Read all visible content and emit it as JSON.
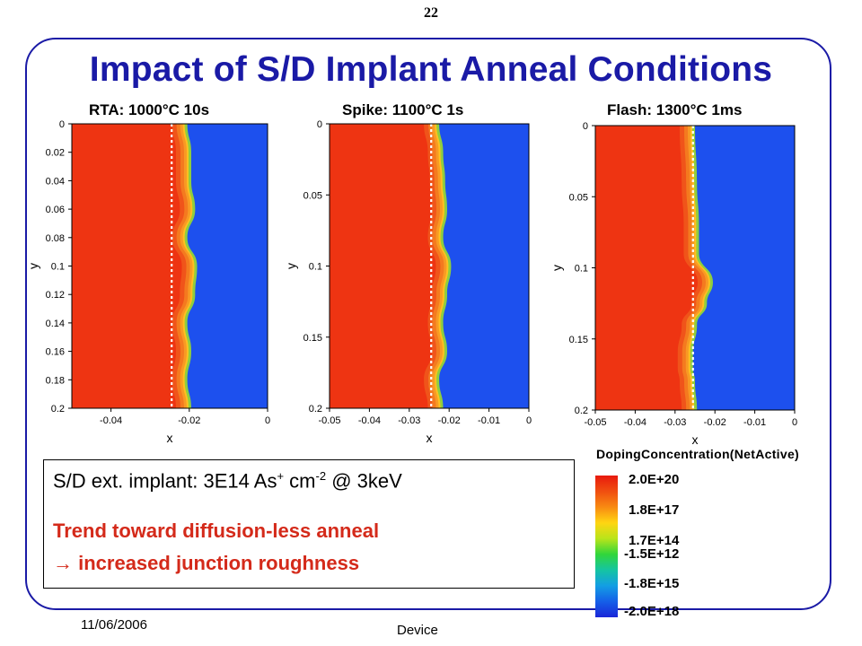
{
  "page_number": "22",
  "title": "Impact of S/D Implant Anneal Conditions",
  "footer": {
    "date": "11/06/2006",
    "label": "Device"
  },
  "info": {
    "implant_prefix": "S/D ext. implant: 3E14 As",
    "implant_sup1": "+",
    "implant_mid": " cm",
    "implant_sup2": "-2",
    "implant_suffix": " @ 3keV",
    "trend_line1": "Trend toward diffusion-less anneal",
    "trend_arrow": "→",
    "trend_line2": " increased junction roughness"
  },
  "colors": {
    "title_blue": "#1a1aa6",
    "trend_red": "#d42a1a",
    "n_region": "#ee3412",
    "p_region": "#1d50ee"
  },
  "chart_data": [
    {
      "type": "heatmap",
      "title": "RTA: 1000°C 10s",
      "xlabel": "x",
      "ylabel": "y",
      "xlim": [
        -0.05,
        0
      ],
      "ylim": [
        0,
        0.2
      ],
      "y_inverted": true,
      "xticks": [
        -0.04,
        -0.02,
        0
      ],
      "xtick_labels": [
        "-0.04",
        "-0.02",
        "0"
      ],
      "yticks": [
        0,
        0.02,
        0.04,
        0.06,
        0.08,
        0.1,
        0.12,
        0.14,
        0.16,
        0.18,
        0.2
      ],
      "ytick_labels": [
        "0",
        "0.02",
        "0.04",
        "0.06",
        "0.08",
        "0.1",
        "0.12",
        "0.14",
        "0.16",
        "0.18",
        "0.2"
      ],
      "dotted_line_x": -0.0245,
      "junction_profile": {
        "y": [
          0,
          0.02,
          0.04,
          0.06,
          0.08,
          0.1,
          0.12,
          0.14,
          0.16,
          0.18,
          0.2
        ],
        "x": [
          -0.0205,
          -0.0195,
          -0.0195,
          -0.0185,
          -0.0205,
          -0.018,
          -0.0185,
          -0.0205,
          -0.0195,
          -0.0205,
          -0.0195
        ]
      }
    },
    {
      "type": "heatmap",
      "title": "Spike: 1100°C 1s",
      "xlabel": "x",
      "ylabel": "y",
      "xlim": [
        -0.05,
        0
      ],
      "ylim": [
        0,
        0.2
      ],
      "y_inverted": true,
      "xticks": [
        -0.05,
        -0.04,
        -0.03,
        -0.02,
        -0.01,
        0
      ],
      "xtick_labels": [
        "-0.05",
        "-0.04",
        "-0.03",
        "-0.02",
        "-0.01",
        "0"
      ],
      "yticks": [
        0,
        0.05,
        0.1,
        0.15,
        0.2
      ],
      "ytick_labels": [
        "0",
        "0.05",
        "0.1",
        "0.15",
        "0.2"
      ],
      "dotted_line_x": -0.0245,
      "junction_profile": {
        "y": [
          0,
          0.02,
          0.04,
          0.06,
          0.08,
          0.1,
          0.12,
          0.14,
          0.16,
          0.18,
          0.2
        ],
        "x": [
          -0.0225,
          -0.0215,
          -0.021,
          -0.0205,
          -0.0215,
          -0.0195,
          -0.0205,
          -0.0215,
          -0.0205,
          -0.0225,
          -0.0215
        ]
      }
    },
    {
      "type": "heatmap",
      "title": "Flash: 1300°C 1ms",
      "xlabel": "x",
      "ylabel": "y",
      "xlim": [
        -0.05,
        0
      ],
      "ylim": [
        0,
        0.2
      ],
      "y_inverted": true,
      "xticks": [
        -0.05,
        -0.04,
        -0.03,
        -0.02,
        -0.01,
        0
      ],
      "xtick_labels": [
        "-0.05",
        "-0.04",
        "-0.03",
        "-0.02",
        "-0.01",
        "0"
      ],
      "yticks": [
        0,
        0.05,
        0.1,
        0.15,
        0.2
      ],
      "ytick_labels": [
        "0",
        "0.05",
        "0.1",
        "0.15",
        "0.2"
      ],
      "dotted_line_x": -0.0255,
      "junction_profile": {
        "y": [
          0,
          0.04,
          0.07,
          0.09,
          0.11,
          0.125,
          0.14,
          0.16,
          0.17,
          0.18,
          0.2
        ],
        "x": [
          -0.025,
          -0.0245,
          -0.024,
          -0.024,
          -0.0205,
          -0.022,
          -0.0245,
          -0.0255,
          -0.0255,
          -0.025,
          -0.0245
        ]
      }
    }
  ],
  "legend": {
    "title": "DopingConcentration(NetActive)",
    "labels": [
      "2.0E+20",
      "1.8E+17",
      "1.7E+14",
      "-1.5E+12",
      "-1.8E+15",
      "-2.0E+18"
    ],
    "gradient_stops": [
      "#e81a0d",
      "#f04e10",
      "#f88a12",
      "#ffd512",
      "#b9e41a",
      "#31d63a",
      "#15c4a2",
      "#139ee4",
      "#155fe8",
      "#1a26d8"
    ]
  }
}
